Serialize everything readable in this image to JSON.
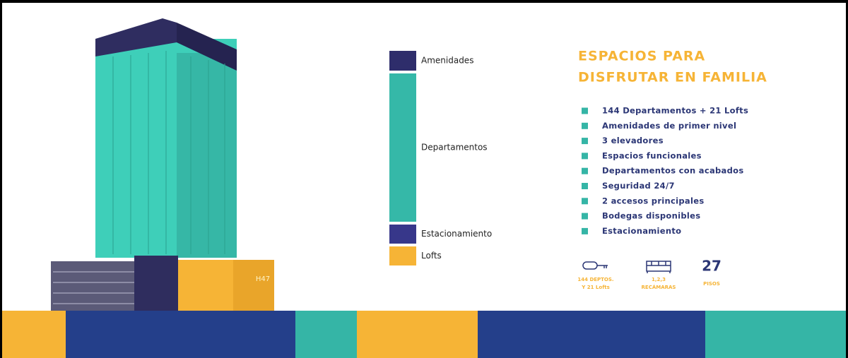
{
  "legend": [
    {
      "label": "Amenidades",
      "color": "#2e2d6b"
    },
    {
      "label": "Departamentos",
      "color": "#35b8a8"
    },
    {
      "label": "Estacionamiento",
      "color": "#37378a"
    },
    {
      "label": "Lofts",
      "color": "#f6b436"
    }
  ],
  "heading": [
    "ESPACIOS PARA",
    "DISFRUTAR EN FAMILIA"
  ],
  "features": [
    "144 Departamentos + 21 Lofts",
    "Amenidades de primer nivel",
    "3 elevadores",
    "Espacios funcionales",
    "Departamentos con acabados",
    "Seguridad 24/7",
    "2 accesos principales",
    "Bodegas disponibles",
    "Estacionamiento"
  ],
  "stats": [
    {
      "caption": [
        "144 DEPTOS.",
        "Y 21 Lofts"
      ]
    },
    {
      "caption": [
        "1,2,3",
        "RECÁMARAS"
      ]
    },
    {
      "number": "27",
      "caption": [
        "PISOS"
      ]
    }
  ],
  "building_sign": "H47"
}
